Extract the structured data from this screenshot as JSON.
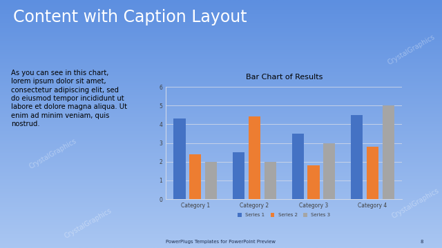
{
  "slide_title": "Content with Caption Layout",
  "caption": "As you can see in this chart, lorem ipsum dolor sit amet, consectetur adipiscing elit, sed do eiusmod tempor incididunt ut labore et dolore magna aliqua. Ut enim ad minim veniam, quis nostrud.",
  "footer": "PowerPlugs Templates for PowerPoint Preview",
  "page_number": "8",
  "watermark": "CrystalGraphics",
  "chart_data": {
    "type": "bar",
    "title": "Bar Chart of Results",
    "categories": [
      "Category 1",
      "Category 2",
      "Category 3",
      "Category 4"
    ],
    "series": [
      {
        "name": "Series 1",
        "color": "#4472c4",
        "values": [
          4.3,
          2.5,
          3.5,
          4.5
        ]
      },
      {
        "name": "Series 2",
        "color": "#ed7d31",
        "values": [
          2.4,
          4.4,
          1.8,
          2.8
        ]
      },
      {
        "name": "Series 3",
        "color": "#a5a5a5",
        "values": [
          2,
          2,
          3,
          5
        ]
      }
    ],
    "ylim": [
      0,
      6
    ],
    "yticks": [
      0,
      1,
      2,
      3,
      4,
      5,
      6
    ],
    "grid": true,
    "legend": "lower center"
  }
}
